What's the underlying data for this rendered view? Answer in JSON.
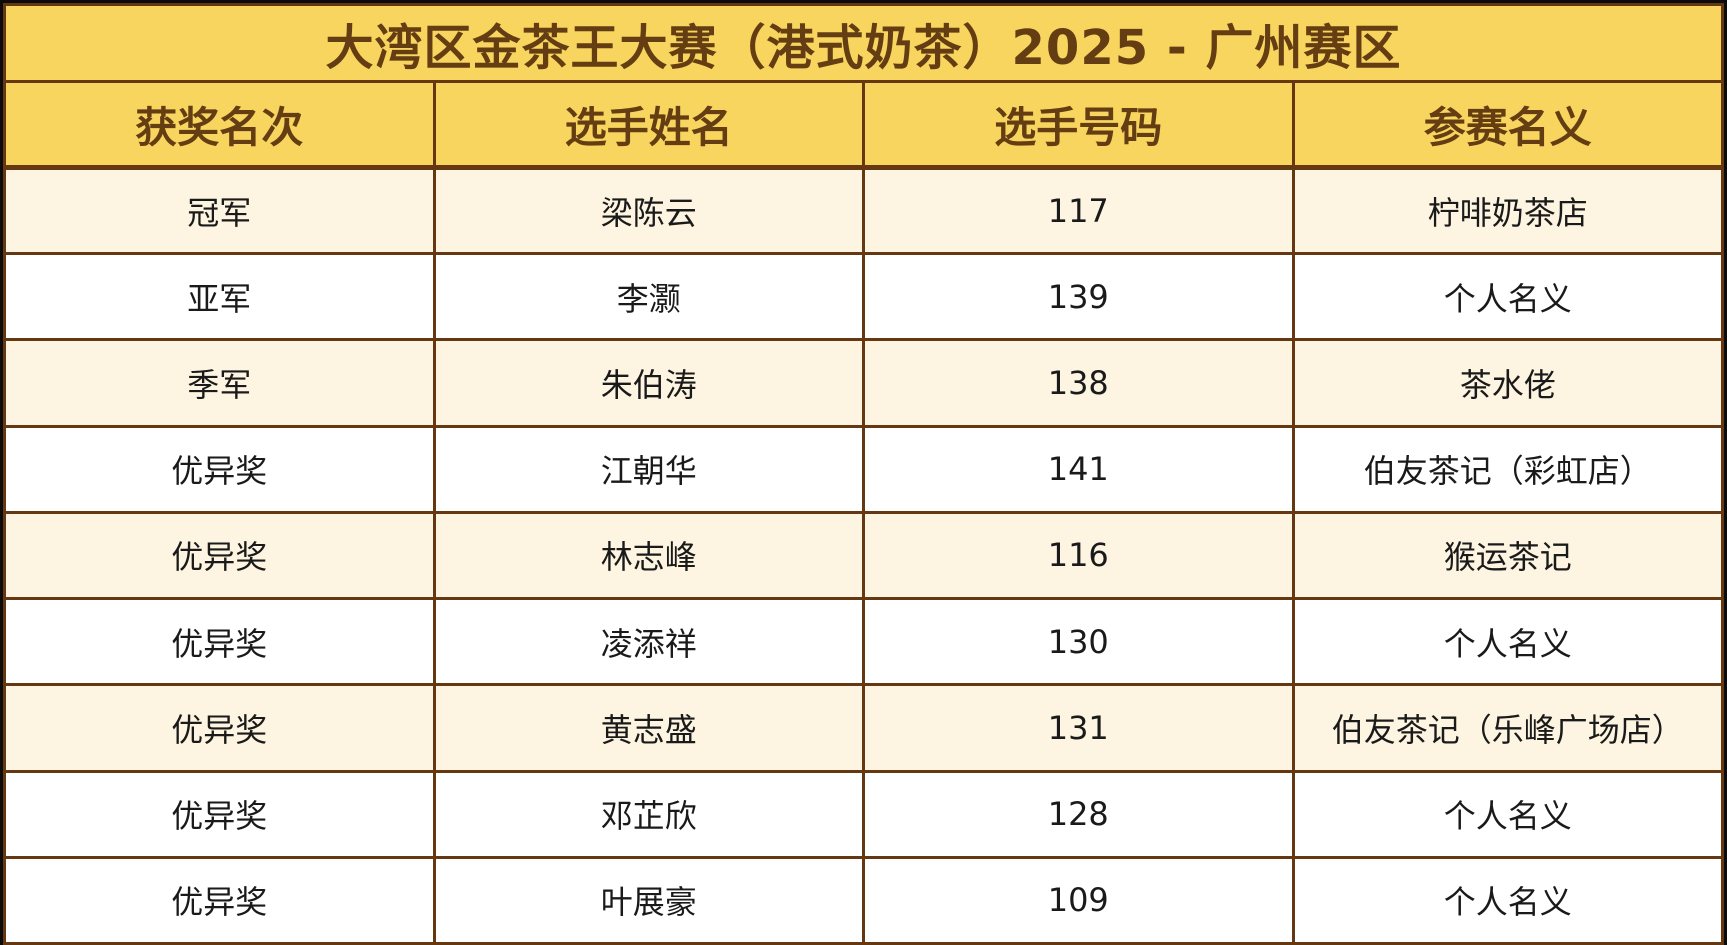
{
  "table": {
    "title": "大湾区金茶王大赛（港式奶茶）2025 - 广州赛区",
    "columns": [
      "获奖名次",
      "选手姓名",
      "选手号码",
      "参赛名义"
    ],
    "rows": [
      {
        "rank": "冠军",
        "name": "梁陈云",
        "number": "117",
        "entity": "柠啡奶茶店"
      },
      {
        "rank": "亚军",
        "name": "李灏",
        "number": "139",
        "entity": "个人名义"
      },
      {
        "rank": "季军",
        "name": "朱伯涛",
        "number": "138",
        "entity": "茶水佬"
      },
      {
        "rank": "优异奖",
        "name": "江朝华",
        "number": "141",
        "entity": "伯友茶记（彩虹店）"
      },
      {
        "rank": "优异奖",
        "name": "林志峰",
        "number": "116",
        "entity": "猴运茶记"
      },
      {
        "rank": "优异奖",
        "name": "凌添祥",
        "number": "130",
        "entity": "个人名义"
      },
      {
        "rank": "优异奖",
        "name": "黄志盛",
        "number": "131",
        "entity": "伯友茶记（乐峰广场店）"
      },
      {
        "rank": "优异奖",
        "name": "邓芷欣",
        "number": "128",
        "entity": "个人名义"
      },
      {
        "rank": "优异奖",
        "name": "叶展豪",
        "number": "109",
        "entity": "个人名义"
      }
    ],
    "colors": {
      "band_bg": "#f8d55e",
      "band_text": "#643d13",
      "grid_border": "#653812",
      "row_stripe_bg": "#fdf5e1",
      "row_bg": "#ffffff",
      "data_text": "#1a1a1a",
      "outer_frame": "#0c0c0c"
    }
  }
}
